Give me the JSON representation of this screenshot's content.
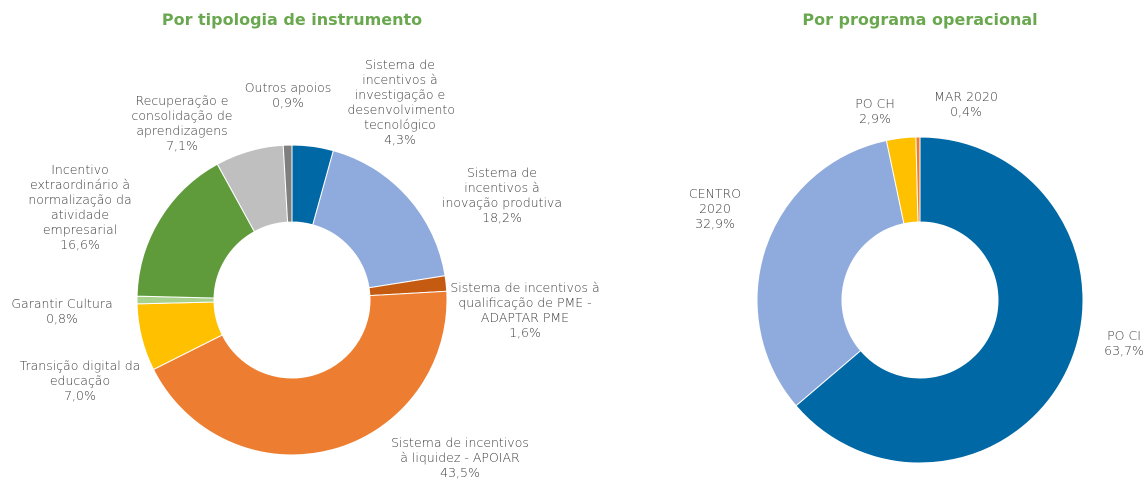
{
  "chart_data": [
    {
      "type": "donut",
      "title": "Por tipologia de instrumento",
      "categories": [
        "Sistema de incentivos à investigação e desenvolvimento tecnológico",
        "Sistema de incentivos à inovação produtiva",
        "Sistema de incentivos à qualificação de PME - ADAPTAR PME",
        "Sistema de incentivos à liquidez - APOIAR",
        "Transição digital da educação",
        "Garantir Cultura",
        "Incentivo extraordinário à normalização da atividade empresarial",
        "Recuperação e consolidação de aprendizagens",
        "Outros apoios"
      ],
      "values": [
        4.3,
        18.2,
        1.6,
        43.5,
        7.0,
        0.8,
        16.6,
        7.1,
        0.9
      ],
      "value_labels": [
        "4,3%",
        "18,2%",
        "1,6%",
        "43,5%",
        "7,0%",
        "0,8%",
        "16,6%",
        "7,1%",
        "0,9%"
      ],
      "colors": [
        "#0068a5",
        "#8faadc",
        "#c55a11",
        "#ed7d31",
        "#ffc000",
        "#a9d18e",
        "#5f9b3b",
        "#bfbfbf",
        "#7f7f7f"
      ]
    },
    {
      "type": "donut",
      "title": "Por programa operacional",
      "categories": [
        "PO CI",
        "CENTRO 2020",
        "PO CH",
        "MAR 2020"
      ],
      "values": [
        63.7,
        32.9,
        2.9,
        0.4
      ],
      "value_labels": [
        "63,7%",
        "32,9%",
        "2,9%",
        "0,4%"
      ],
      "colors": [
        "#0068a5",
        "#8faadc",
        "#ffc000",
        "#ed7d31"
      ]
    }
  ]
}
